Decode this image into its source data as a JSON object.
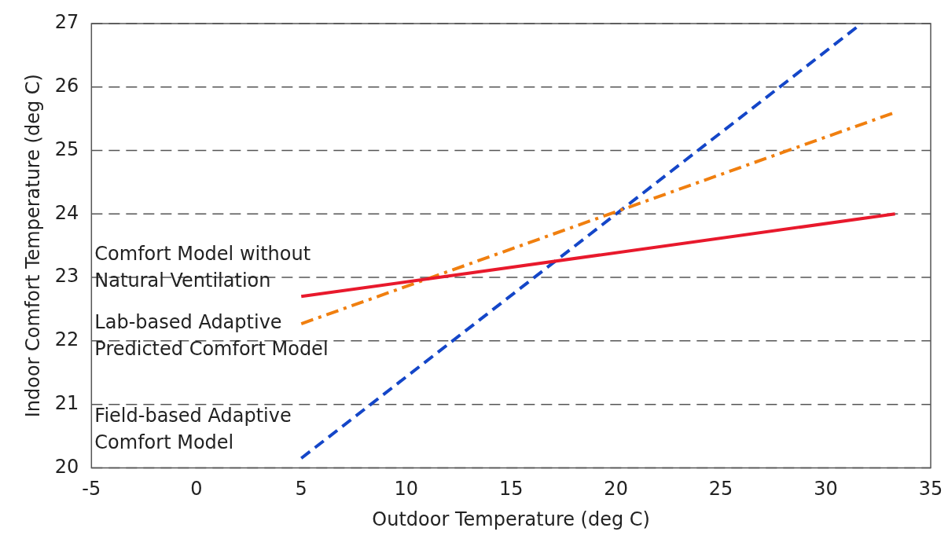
{
  "chart_data": {
    "type": "line",
    "xlabel": "Outdoor Temperature (deg C)",
    "ylabel": "Indoor Comfort Temperature (deg C)",
    "xlim": [
      -5,
      35
    ],
    "xticks": [
      -5,
      0,
      5,
      10,
      15,
      20,
      25,
      30,
      35
    ],
    "ylim": [
      20,
      27
    ],
    "yticks": [
      20,
      21,
      22,
      23,
      24,
      25,
      26,
      27
    ],
    "grid": "y",
    "legend": false,
    "marker": "none",
    "series": [
      {
        "name": "Comfort Model without Natural Ventilation",
        "color": "#e8192c",
        "line_style": "solid",
        "x": [
          5,
          33.3
        ],
        "values": [
          22.7,
          24.0
        ]
      },
      {
        "name": "Lab-based Adaptive Predicted Comfort Model",
        "color": "#f07f0f",
        "line_style": "dashdot",
        "x": [
          5,
          33.3
        ],
        "values": [
          22.27,
          25.6
        ]
      },
      {
        "name": "Field-based Adaptive Comfort Model",
        "color": "#1446c8",
        "line_style": "dashed",
        "x": [
          5,
          31.7
        ],
        "values": [
          20.15,
          27
        ]
      }
    ]
  }
}
